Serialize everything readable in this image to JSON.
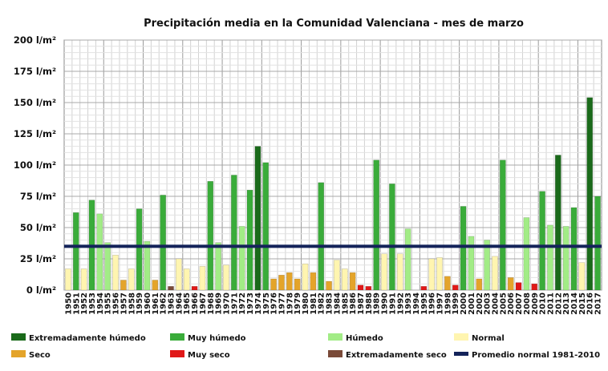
{
  "chart_data": {
    "type": "bar",
    "title": "Precipitación media en la Comunidad Valenciana - mes de marzo",
    "xlabel": "",
    "ylabel": "",
    "ylim": [
      0,
      200
    ],
    "grid": true,
    "y_ticks": [
      "0 l/m²",
      "25 l/m²",
      "50 l/m²",
      "75 l/m²",
      "100 l/m²",
      "125 l/m²",
      "150 l/m²",
      "175 l/m²",
      "200 l/m²"
    ],
    "y_tick_values": [
      0,
      25,
      50,
      75,
      100,
      125,
      150,
      175,
      200
    ],
    "categories": [
      "1950",
      "1951",
      "1952",
      "1953",
      "1954",
      "1955",
      "1956",
      "1957",
      "1958",
      "1959",
      "1960",
      "1961",
      "1962",
      "1963",
      "1964",
      "1965",
      "1966",
      "1967",
      "1968",
      "1969",
      "1970",
      "1971",
      "1972",
      "1973",
      "1974",
      "1975",
      "1976",
      "1977",
      "1978",
      "1979",
      "1980",
      "1981",
      "1982",
      "1983",
      "1984",
      "1985",
      "1986",
      "1987",
      "1988",
      "1989",
      "1990",
      "1991",
      "1992",
      "1993",
      "1994",
      "1995",
      "1996",
      "1997",
      "1998",
      "1999",
      "2000",
      "2001",
      "2002",
      "2003",
      "2004",
      "2005",
      "2006",
      "2007",
      "2008",
      "2009",
      "2010",
      "2011",
      "2012",
      "2013",
      "2014",
      "2015",
      "2016",
      "2017"
    ],
    "values": [
      17,
      62,
      17,
      72,
      61,
      38,
      28,
      8,
      17,
      65,
      39,
      8,
      76,
      3,
      25,
      17,
      3,
      19,
      87,
      38,
      20,
      92,
      51,
      80,
      115,
      102,
      9,
      12,
      14,
      9,
      21,
      14,
      86,
      7,
      24,
      17,
      14,
      4,
      3,
      104,
      29,
      85,
      29,
      49,
      0,
      3,
      25,
      26,
      11,
      4,
      67,
      43,
      9,
      40,
      27,
      104,
      10,
      6,
      58,
      5,
      79,
      52,
      108,
      51,
      66,
      22,
      154,
      75
    ],
    "classes": [
      "normal",
      "muy_humedo",
      "normal",
      "muy_humedo",
      "humedo",
      "humedo",
      "normal",
      "seco",
      "normal",
      "muy_humedo",
      "humedo",
      "seco",
      "muy_humedo",
      "ext_seco",
      "normal",
      "normal",
      "muy_seco",
      "normal",
      "muy_humedo",
      "humedo",
      "normal",
      "muy_humedo",
      "humedo",
      "muy_humedo",
      "ext_humedo",
      "muy_humedo",
      "seco",
      "seco",
      "seco",
      "seco",
      "normal",
      "seco",
      "muy_humedo",
      "seco",
      "normal",
      "normal",
      "seco",
      "muy_seco",
      "muy_seco",
      "muy_humedo",
      "normal",
      "muy_humedo",
      "normal",
      "humedo",
      "normal",
      "muy_seco",
      "normal",
      "normal",
      "seco",
      "muy_seco",
      "muy_humedo",
      "humedo",
      "seco",
      "humedo",
      "normal",
      "muy_humedo",
      "seco",
      "muy_seco",
      "humedo",
      "muy_seco",
      "muy_humedo",
      "humedo",
      "ext_humedo",
      "humedo",
      "muy_humedo",
      "normal",
      "ext_humedo",
      "muy_humedo"
    ],
    "average_line": {
      "name": "Promedio normal 1981-2010",
      "value": 35,
      "color": "#14235a"
    },
    "class_colors": {
      "ext_humedo": "#1a6a1a",
      "muy_humedo": "#3aac3a",
      "humedo": "#a2ec86",
      "normal": "#fff5b0",
      "seco": "#e4a42a",
      "muy_seco": "#e01818",
      "ext_seco": "#7a4a38"
    },
    "legend": [
      {
        "key": "ext_humedo",
        "label": "Extremadamente húmedo"
      },
      {
        "key": "muy_humedo",
        "label": "Muy húmedo"
      },
      {
        "key": "humedo",
        "label": "Húmedo"
      },
      {
        "key": "normal",
        "label": "Normal"
      },
      {
        "key": "seco",
        "label": "Seco"
      },
      {
        "key": "muy_seco",
        "label": "Muy seco"
      },
      {
        "key": "ext_seco",
        "label": "Extremadamente seco"
      },
      {
        "key": "average",
        "label": "Promedio normal 1981-2010"
      }
    ],
    "legend_placement": "bottom"
  }
}
